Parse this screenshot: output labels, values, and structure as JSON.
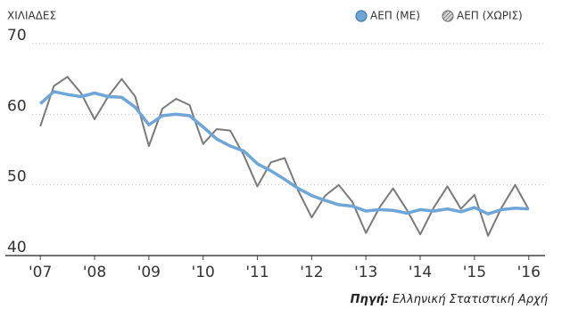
{
  "chart_data": {
    "type": "line",
    "y_axis_label": "ΧΙΛΙΑΔΕΣ",
    "source_label": "Πηγή:",
    "source_text": "Ελληνική Στατιστική Αρχή",
    "x": [
      2007,
      2007.25,
      2007.5,
      2007.75,
      2008,
      2008.25,
      2008.5,
      2008.75,
      2009,
      2009.25,
      2009.5,
      2009.75,
      2010,
      2010.25,
      2010.5,
      2010.75,
      2011,
      2011.25,
      2011.5,
      2011.75,
      2012,
      2012.25,
      2012.5,
      2012.75,
      2013,
      2013.25,
      2013.5,
      2013.75,
      2014,
      2014.25,
      2014.5,
      2014.75,
      2015,
      2015.25,
      2015.5,
      2015.75,
      2016
    ],
    "series": [
      {
        "name": "ΑΕΠ (ΜΕ)",
        "color": "#6ea6d8",
        "values": [
          61.5,
          63.2,
          62.8,
          62.5,
          63.0,
          62.5,
          62.4,
          61.0,
          58.5,
          59.8,
          60.0,
          59.8,
          58.2,
          56.5,
          55.5,
          54.8,
          53.0,
          52.0,
          50.8,
          49.5,
          48.5,
          47.8,
          47.2,
          47.0,
          46.3,
          46.5,
          46.4,
          46.0,
          46.5,
          46.3,
          46.6,
          46.2,
          46.8,
          45.9,
          46.5,
          46.7,
          46.6
        ]
      },
      {
        "name": "ΑΕΠ (ΧΩΡΙΣ)",
        "color": "#7a7a7a",
        "values": [
          58.3,
          64.0,
          65.3,
          63.0,
          59.3,
          62.5,
          65.0,
          62.5,
          55.5,
          60.8,
          62.2,
          61.3,
          55.8,
          57.9,
          57.7,
          54.2,
          49.8,
          53.2,
          53.8,
          49.2,
          45.4,
          48.5,
          50.0,
          47.6,
          43.2,
          46.8,
          49.5,
          46.5,
          43.0,
          46.8,
          49.8,
          46.6,
          48.6,
          42.8,
          46.8,
          50.0,
          46.5
        ]
      }
    ],
    "xlim": [
      2006.8,
      2016.3
    ],
    "xticks": [
      {
        "value": 2007,
        "label": "'07"
      },
      {
        "value": 2008,
        "label": "'08"
      },
      {
        "value": 2009,
        "label": "'09"
      },
      {
        "value": 2010,
        "label": "'10"
      },
      {
        "value": 2011,
        "label": "'11"
      },
      {
        "value": 2012,
        "label": "'12"
      },
      {
        "value": 2013,
        "label": "'13"
      },
      {
        "value": 2014,
        "label": "'14"
      },
      {
        "value": 2015,
        "label": "'15"
      },
      {
        "value": 2016,
        "label": "'16"
      }
    ],
    "ylim": [
      40,
      70
    ],
    "yticks": [
      40,
      50,
      60,
      70
    ],
    "grid": true
  }
}
